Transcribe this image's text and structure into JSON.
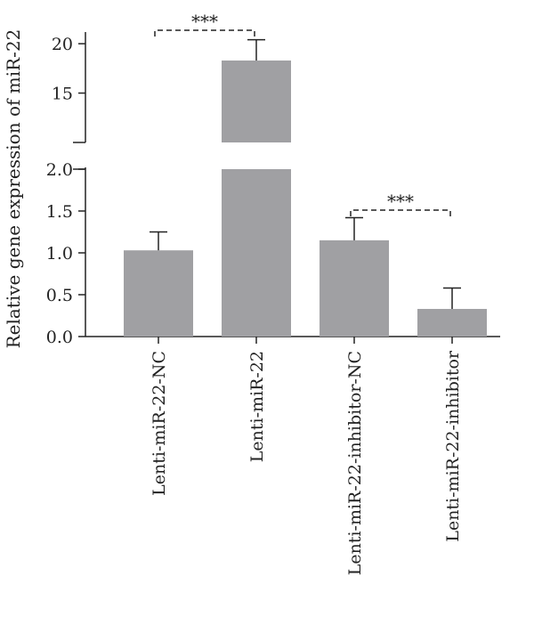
{
  "chart_data": {
    "type": "bar",
    "ylabel": "Relative gene expression of miR-22",
    "categories": [
      "Lenti-miR-22-NC",
      "Lenti-miR-22",
      "Lenti-miR-22-inhibitor-NC",
      "Lenti-miR-22-inhibitor"
    ],
    "values": [
      1.03,
      18.3,
      1.15,
      0.33
    ],
    "errors": [
      0.22,
      2.1,
      0.27,
      0.25
    ],
    "y_axis_broken": true,
    "lower_ylim": [
      0,
      2.0
    ],
    "upper_ylim": [
      10,
      21
    ],
    "lower_ticks": [
      "0.0",
      "0.5",
      "1.0",
      "1.5",
      "2.0"
    ],
    "upper_ticks": [
      "15",
      "20"
    ],
    "bar_color": "#a0a0a3",
    "significance": [
      {
        "from": 0,
        "to": 1,
        "label": "***"
      },
      {
        "from": 2,
        "to": 3,
        "label": "***"
      }
    ]
  }
}
